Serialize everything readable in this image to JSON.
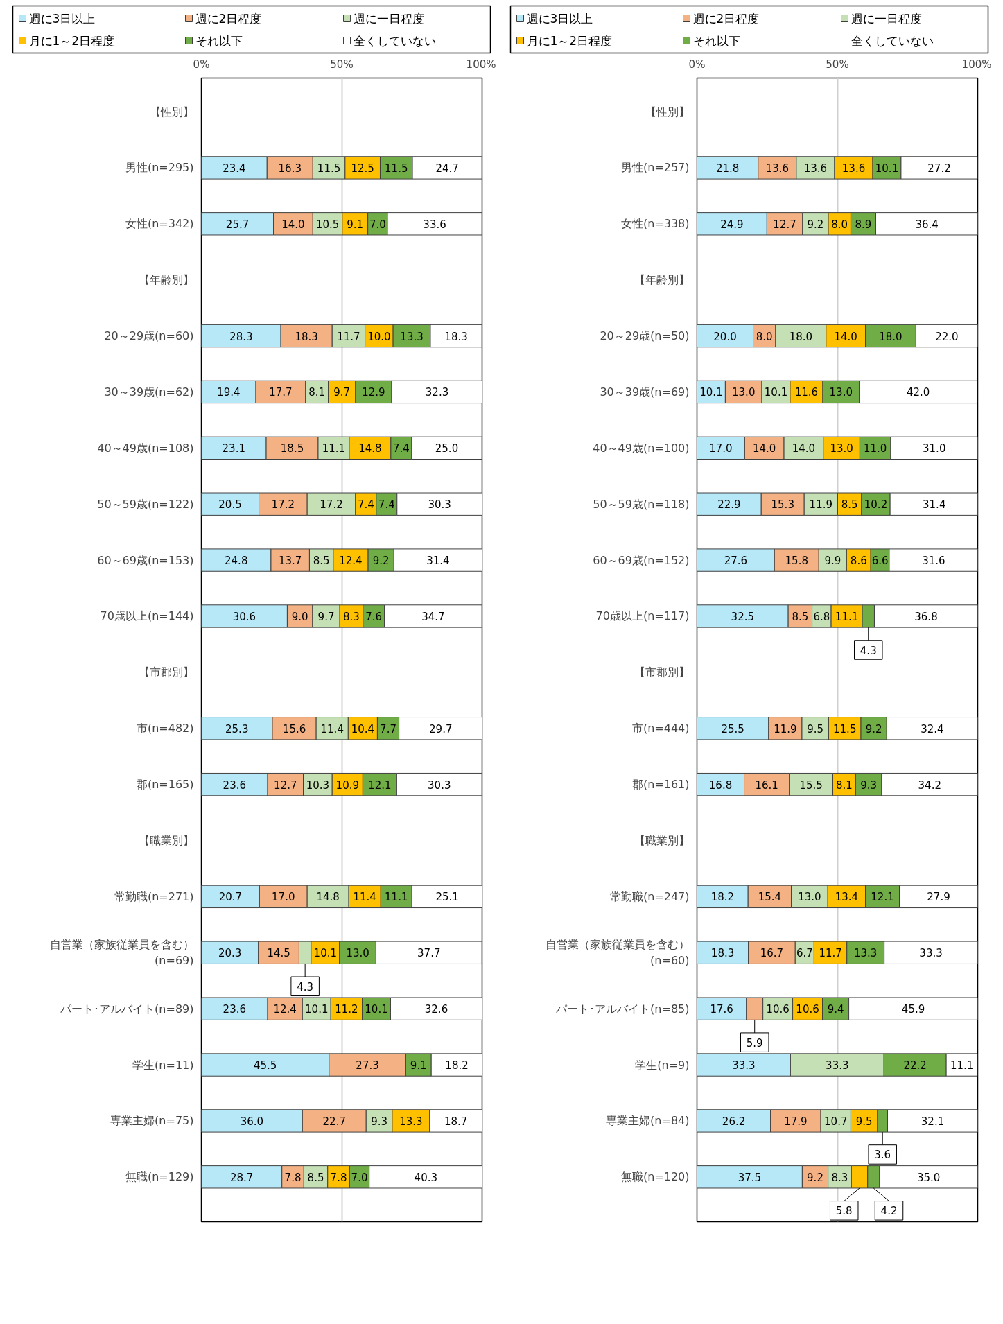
{
  "chart_data": [
    {
      "type": "bar",
      "orientation": "horizontal",
      "stacked": true,
      "legend": "top",
      "grid": "x",
      "xlim": [
        0,
        100
      ],
      "xticks": [
        {
          "value": 0,
          "label": "0%"
        },
        {
          "value": 50,
          "label": "50%"
        },
        {
          "value": 100,
          "label": "100%"
        }
      ],
      "categories": [
        "【性別】",
        "男性(n=295)",
        "女性(n=342)",
        "【年齢別】",
        "20～29歳(n=60)",
        "30～39歳(n=62)",
        "40～49歳(n=108)",
        "50～59歳(n=122)",
        "60～69歳(n=153)",
        "70歳以上(n=144)",
        "【市郡別】",
        "市(n=482)",
        "郡(n=165)",
        "【職業別】",
        "常勤職(n=271)",
        "自営業（家族従業員を含む）\n(n=69)",
        "パート･アルバイト(n=89)",
        "学生(n=11)",
        "専業主婦(n=75)",
        "無職(n=129)"
      ],
      "series": [
        {
          "name": "週に3日以上",
          "color": "#b7e8f8",
          "values": [
            null,
            23.4,
            25.7,
            null,
            28.3,
            19.4,
            23.1,
            20.5,
            24.8,
            30.6,
            null,
            25.3,
            23.6,
            null,
            20.7,
            20.3,
            23.6,
            45.5,
            36.0,
            28.7
          ],
          "value_labels": [
            null,
            "23.4",
            "25.7",
            null,
            "28.3",
            "19.4",
            "23.1",
            "20.5",
            "24.8",
            "30.6",
            null,
            "25.3",
            "23.6",
            null,
            "20.7",
            "20.3",
            "23.6",
            "45.5",
            "36.0",
            "28.7"
          ]
        },
        {
          "name": "週に2日程度",
          "color": "#f4b183",
          "values": [
            null,
            16.3,
            14.0,
            null,
            18.3,
            17.7,
            18.5,
            17.2,
            13.7,
            9.0,
            null,
            15.6,
            12.7,
            null,
            17.0,
            14.5,
            12.4,
            27.3,
            22.7,
            7.8
          ],
          "value_labels": [
            null,
            "16.3",
            "14.0",
            null,
            "18.3",
            "17.7",
            "18.5",
            "17.2",
            "13.7",
            "9.0",
            null,
            "15.6",
            "12.7",
            null,
            "17.0",
            "14.5",
            "12.4",
            "27.3",
            "22.7",
            "7.8"
          ]
        },
        {
          "name": "週に一日程度",
          "color": "#c5e0b4",
          "values": [
            null,
            11.5,
            10.5,
            null,
            11.7,
            8.1,
            11.1,
            17.2,
            8.5,
            9.7,
            null,
            11.4,
            10.3,
            null,
            14.8,
            4.3,
            10.1,
            null,
            9.3,
            8.5
          ],
          "value_labels": [
            null,
            "11.5",
            "10.5",
            null,
            "11.7",
            "8.1",
            "11.1",
            "17.2",
            "8.5",
            "9.7",
            null,
            "11.4",
            "10.3",
            null,
            "14.8",
            "4.3",
            "10.1",
            null,
            "9.3",
            "8.5"
          ]
        },
        {
          "name": "月に1～2日程度",
          "color": "#ffc000",
          "values": [
            null,
            12.5,
            9.1,
            null,
            10.0,
            9.7,
            14.8,
            7.4,
            12.4,
            8.3,
            null,
            10.4,
            10.9,
            null,
            11.4,
            10.1,
            11.2,
            null,
            13.3,
            7.8
          ],
          "value_labels": [
            null,
            "12.5",
            "9.1",
            null,
            "10.0",
            "9.7",
            "14.8",
            "7.4",
            "12.4",
            "8.3",
            null,
            "10.4",
            "10.9",
            null,
            "11.4",
            "10.1",
            "11.2",
            null,
            "13.3",
            "7.8"
          ]
        },
        {
          "name": "それ以下",
          "color": "#70ad47",
          "values": [
            null,
            11.5,
            7.0,
            null,
            13.3,
            12.9,
            7.4,
            7.4,
            9.2,
            7.6,
            null,
            7.7,
            12.1,
            null,
            11.1,
            13.0,
            10.1,
            9.1,
            null,
            7.0
          ],
          "value_labels": [
            null,
            "11.5",
            "7.0",
            null,
            "13.3",
            "12.9",
            "7.4",
            "7.4",
            "9.2",
            "7.6",
            null,
            "7.7",
            "12.1",
            null,
            "11.1",
            "13.0",
            "10.1",
            "9.1",
            null,
            "7.0"
          ]
        },
        {
          "name": "全くしていない",
          "color": "#ffffff",
          "values": [
            null,
            24.7,
            33.6,
            null,
            18.3,
            32.3,
            25.0,
            30.3,
            31.4,
            34.7,
            null,
            29.7,
            30.3,
            null,
            25.1,
            37.7,
            32.6,
            18.2,
            18.7,
            40.3
          ],
          "value_labels": [
            null,
            "24.7",
            "33.6",
            null,
            "18.3",
            "32.3",
            "25.0",
            "30.3",
            "31.4",
            "34.7",
            null,
            "29.7",
            "30.3",
            null,
            "25.1",
            "37.7",
            "32.6",
            "18.2",
            "18.7",
            "40.3"
          ]
        }
      ]
    },
    {
      "type": "bar",
      "orientation": "horizontal",
      "stacked": true,
      "legend": "top",
      "grid": "x",
      "xlim": [
        0,
        100
      ],
      "xticks": [
        {
          "value": 0,
          "label": "0%"
        },
        {
          "value": 50,
          "label": "50%"
        },
        {
          "value": 100,
          "label": "100%"
        }
      ],
      "categories": [
        "【性別】",
        "男性(n=257)",
        "女性(n=338)",
        "【年齢別】",
        "20～29歳(n=50)",
        "30～39歳(n=69)",
        "40～49歳(n=100)",
        "50～59歳(n=118)",
        "60～69歳(n=152)",
        "70歳以上(n=117)",
        "【市郡別】",
        "市(n=444)",
        "郡(n=161)",
        "【職業別】",
        "常勤職(n=247)",
        "自営業（家族従業員を含む）\n(n=60)",
        "パート･アルバイト(n=85)",
        "学生(n=9)",
        "専業主婦(n=84)",
        "無職(n=120)"
      ],
      "series": [
        {
          "name": "週に3日以上",
          "color": "#b7e8f8",
          "values": [
            null,
            21.8,
            24.9,
            null,
            20.0,
            10.1,
            17.0,
            22.9,
            27.6,
            32.5,
            null,
            25.5,
            16.8,
            null,
            18.2,
            18.3,
            17.6,
            33.3,
            26.2,
            37.5
          ],
          "value_labels": [
            null,
            "21.8",
            "24.9",
            null,
            "20.0",
            "10.1",
            "17.0",
            "22.9",
            "27.6",
            "32.5",
            null,
            "25.5",
            "16.8",
            null,
            "18.2",
            "18.3",
            "17.6",
            "33.3",
            "26.2",
            "37.5"
          ]
        },
        {
          "name": "週に2日程度",
          "color": "#f4b183",
          "values": [
            null,
            13.6,
            12.7,
            null,
            8.0,
            13.0,
            14.0,
            15.3,
            15.8,
            8.5,
            null,
            11.9,
            16.1,
            null,
            15.4,
            16.7,
            5.9,
            null,
            17.9,
            9.2
          ],
          "value_labels": [
            null,
            "13.6",
            "12.7",
            null,
            "8.0",
            "13.0",
            "14.0",
            "15.3",
            "15.8",
            "8.5",
            null,
            "11.9",
            "16.1",
            null,
            "15.4",
            "16.7",
            "5.9",
            null,
            "17.9",
            "9.2"
          ]
        },
        {
          "name": "週に一日程度",
          "color": "#c5e0b4",
          "values": [
            null,
            13.6,
            9.2,
            null,
            18.0,
            10.1,
            14.0,
            11.9,
            9.9,
            6.8,
            null,
            9.5,
            15.5,
            null,
            13.0,
            6.7,
            10.6,
            33.3,
            10.7,
            8.3
          ],
          "value_labels": [
            null,
            "13.6",
            "9.2",
            null,
            "18.0",
            "10.1",
            "14.0",
            "11.9",
            "9.9",
            "6.8",
            null,
            "9.5",
            "15.5",
            null,
            "13.0",
            "6.7",
            "10.6",
            "33.3",
            "10.7",
            "8.3"
          ]
        },
        {
          "name": "月に1～2日程度",
          "color": "#ffc000",
          "values": [
            null,
            13.6,
            8.0,
            null,
            14.0,
            11.6,
            13.0,
            8.5,
            8.6,
            11.1,
            null,
            11.5,
            8.1,
            null,
            13.4,
            11.7,
            10.6,
            null,
            9.5,
            5.8
          ],
          "value_labels": [
            null,
            "13.6",
            "8.0",
            null,
            "14.0",
            "11.6",
            "13.0",
            "8.5",
            "8.6",
            "11.1",
            null,
            "11.5",
            "8.1",
            null,
            "13.4",
            "11.7",
            "10.6",
            null,
            "9.5",
            "5.8"
          ]
        },
        {
          "name": "それ以下",
          "color": "#70ad47",
          "values": [
            null,
            10.1,
            8.9,
            null,
            18.0,
            13.0,
            11.0,
            10.2,
            6.6,
            4.3,
            null,
            9.2,
            9.3,
            null,
            12.1,
            13.3,
            9.4,
            22.2,
            3.6,
            4.2
          ],
          "value_labels": [
            null,
            "10.1",
            "8.9",
            null,
            "18.0",
            "13.0",
            "11.0",
            "10.2",
            "6.6",
            "4.3",
            null,
            "9.2",
            "9.3",
            null,
            "12.1",
            "13.3",
            "9.4",
            "22.2",
            "3.6",
            "4.2"
          ]
        },
        {
          "name": "全くしていない",
          "color": "#ffffff",
          "values": [
            null,
            27.2,
            36.4,
            null,
            22.0,
            42.0,
            31.0,
            31.4,
            31.6,
            36.8,
            null,
            32.4,
            34.2,
            null,
            27.9,
            33.3,
            45.9,
            11.1,
            32.1,
            35.0
          ],
          "value_labels": [
            null,
            "27.2",
            "36.4",
            null,
            "22.0",
            "42.0",
            "31.0",
            "31.4",
            "31.6",
            "36.8",
            null,
            "32.4",
            "34.2",
            null,
            "27.9",
            "33.3",
            "45.9",
            "11.1",
            "32.1",
            "35.0"
          ]
        }
      ]
    }
  ]
}
